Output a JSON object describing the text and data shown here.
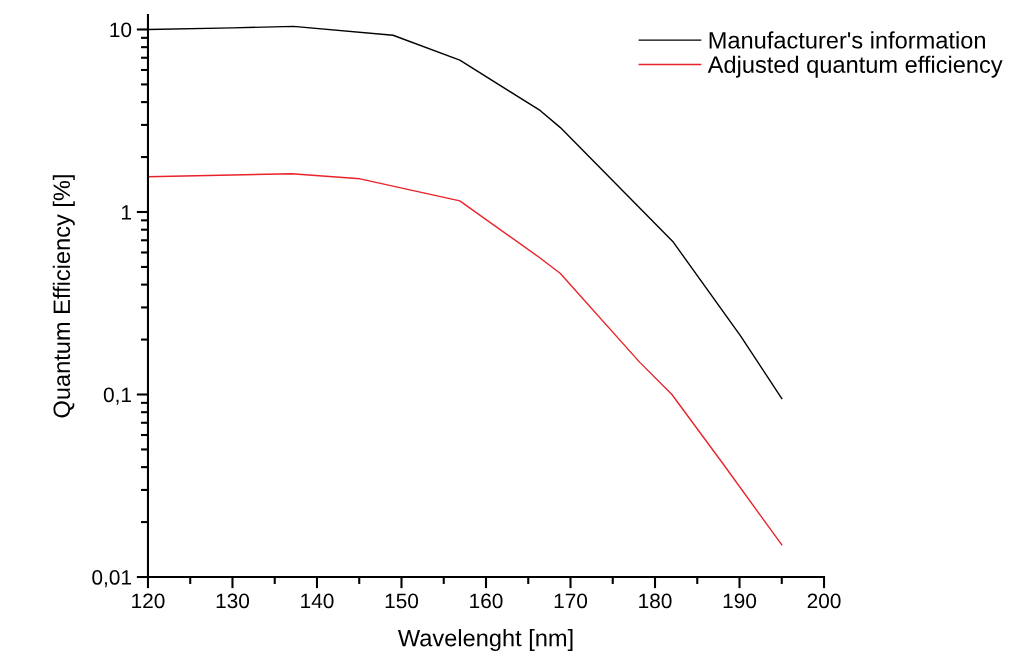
{
  "chart_data": {
    "type": "line",
    "xlabel": "Wavelenght [nm]",
    "ylabel": "Quantum Efficiency [%]",
    "log": "y",
    "xlim": [
      120,
      200
    ],
    "xticks": [
      120,
      130,
      140,
      150,
      160,
      170,
      180,
      190,
      200
    ],
    "ylim": [
      0.01,
      12
    ],
    "yticks": [
      {
        "value": 0.01,
        "label": "0,01"
      },
      {
        "value": 0.1,
        "label": "0,1"
      },
      1,
      10
    ],
    "grid": false,
    "legend": "top right",
    "marker": "none",
    "line_style": "solid",
    "series": [
      {
        "name": "Manufacturer's information",
        "color": "#000000",
        "x": [
          120,
          130,
          137.2,
          149.0,
          156.9,
          166.4,
          168.8,
          182.1,
          190.1,
          195
        ],
        "values": [
          10.0,
          10.2,
          10.4,
          9.3,
          6.8,
          3.6,
          2.9,
          0.69,
          0.21,
          0.095
        ]
      },
      {
        "name": "Adjusted quantum efficiency",
        "color": "#e8232a",
        "x": [
          120,
          137,
          145.1,
          156.9,
          166.4,
          168.8,
          178.2,
          182.0,
          188.0,
          195
        ],
        "values": [
          1.56,
          1.62,
          1.52,
          1.15,
          0.56,
          0.46,
          0.15,
          0.1,
          0.042,
          0.015
        ]
      }
    ]
  }
}
